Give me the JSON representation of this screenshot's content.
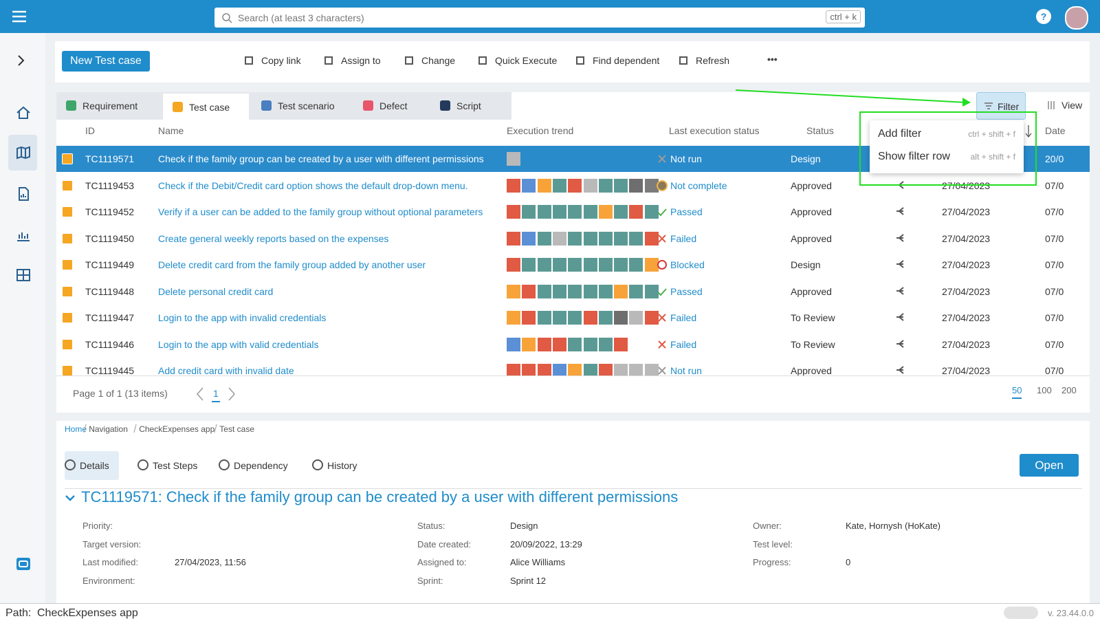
{
  "header": {
    "search_placeholder": "Search (at least 3 characters)",
    "search_shortcut": "ctrl + k",
    "help": "?"
  },
  "toolbar": {
    "primary": "New Test case",
    "actions": [
      "Copy link",
      "Assign to",
      "Change",
      "Quick Execute",
      "Find dependent",
      "Refresh"
    ],
    "more": "•••"
  },
  "tabs": {
    "items": [
      "Requirement",
      "Test case",
      "Test scenario",
      "Defect",
      "Script"
    ],
    "colors": [
      "#3fa66b",
      "#f5a623",
      "#4a7fc1",
      "#e8566c",
      "#23395d"
    ],
    "active": 1
  },
  "filter_button": "Filter",
  "view_button": "View",
  "filter_menu": [
    {
      "label": "Add filter",
      "shortcut": "ctrl + shift + f"
    },
    {
      "label": "Show filter row",
      "shortcut": "alt + shift + f"
    }
  ],
  "table": {
    "columns": [
      "ID",
      "Name",
      "Execution trend",
      "Last execution status",
      "Status",
      "Date"
    ],
    "selected_row": 0,
    "rows": [
      {
        "id": "TC1119571",
        "name": "Check if the family group can be created by a user with different permissions",
        "trend": [
          "#b9b9b9"
        ],
        "last_status": "Not run",
        "icon": "cross",
        "icon_color": "#9a9a9a",
        "status": "Design",
        "date": null,
        "date2": "20/0"
      },
      {
        "id": "TC1119453",
        "name": "Check if the Debit/Credit card option shows the default drop-down menu.",
        "trend": [
          "#e05a44",
          "#5b8fd6",
          "#f7a33a",
          "#5b9a94",
          "#e05a44",
          "#b9b9b9",
          "#5b9a94",
          "#5b9a94",
          "#6e6e6e",
          "#7c7c7c"
        ],
        "last_status": "Not complete",
        "icon": "half",
        "icon_color": "#f0b44a",
        "status": "Approved",
        "date": "27/04/2023",
        "date2": "07/0"
      },
      {
        "id": "TC1119452",
        "name": "Verify if a user can be added to the family group without optional parameters",
        "trend": [
          "#e05a44",
          "#5b9a94",
          "#5b9a94",
          "#5b9a94",
          "#5b9a94",
          "#5b9a94",
          "#f7a33a",
          "#5b9a94",
          "#e05a44",
          "#5b9a94"
        ],
        "last_status": "Passed",
        "icon": "check",
        "icon_color": "#4caf50",
        "status": "Approved",
        "date": "27/04/2023",
        "date2": "07/0"
      },
      {
        "id": "TC1119450",
        "name": "Create general weekly reports based on the expenses",
        "trend": [
          "#e05a44",
          "#5b8fd6",
          "#5b9a94",
          "#b9b9b9",
          "#5b9a94",
          "#5b9a94",
          "#5b9a94",
          "#5b9a94",
          "#5b9a94",
          "#e05a44"
        ],
        "last_status": "Failed",
        "icon": "cross",
        "icon_color": "#e05a44",
        "status": "Approved",
        "date": "27/04/2023",
        "date2": "07/0"
      },
      {
        "id": "TC1119449",
        "name": "Delete credit card from the family group added by another user",
        "trend": [
          "#e05a44",
          "#5b9a94",
          "#5b9a94",
          "#5b9a94",
          "#5b9a94",
          "#5b9a94",
          "#5b9a94",
          "#5b9a94",
          "#5b9a94",
          "#f7a33a"
        ],
        "last_status": "Blocked",
        "icon": "blocked",
        "icon_color": "#d9363e",
        "status": "Design",
        "date": "27/04/2023",
        "date2": "07/0"
      },
      {
        "id": "TC1119448",
        "name": "Delete personal credit card",
        "trend": [
          "#f7a33a",
          "#e05a44",
          "#5b9a94",
          "#5b9a94",
          "#5b9a94",
          "#5b9a94",
          "#5b9a94",
          "#f7a33a",
          "#5b9a94",
          "#5b9a94"
        ],
        "last_status": "Passed",
        "icon": "check",
        "icon_color": "#4caf50",
        "status": "Approved",
        "date": "27/04/2023",
        "date2": "07/0"
      },
      {
        "id": "TC1119447",
        "name": "Login to the app with invalid credentials",
        "trend": [
          "#f7a33a",
          "#e05a44",
          "#5b9a94",
          "#5b9a94",
          "#5b9a94",
          "#e05a44",
          "#5b9a94",
          "#6e6e6e",
          "#b9b9b9",
          "#e05a44"
        ],
        "last_status": "Failed",
        "icon": "cross",
        "icon_color": "#e05a44",
        "status": "To Review",
        "date": "27/04/2023",
        "date2": "07/0"
      },
      {
        "id": "TC1119446",
        "name": "Login to the app with valid credentials",
        "trend": [
          "#5b8fd6",
          "#f7a33a",
          "#e05a44",
          "#e05a44",
          "#5b9a94",
          "#5b9a94",
          "#5b9a94",
          "#e05a44"
        ],
        "last_status": "Failed",
        "icon": "cross",
        "icon_color": "#e05a44",
        "status": "To Review",
        "date": "27/04/2023",
        "date2": "07/0"
      },
      {
        "id": "TC1119445",
        "name": "Add credit card with invalid date",
        "trend": [
          "#e05a44",
          "#e05a44",
          "#e05a44",
          "#5b8fd6",
          "#f7a33a",
          "#5b9a94",
          "#e05a44",
          "#b9b9b9",
          "#b9b9b9",
          "#b9b9b9"
        ],
        "last_status": "Not run",
        "icon": "cross",
        "icon_color": "#9a9a9a",
        "status": "Approved",
        "date": "27/04/2023",
        "date2": "07/0"
      }
    ]
  },
  "pagination": {
    "summary": "Page 1 of 1 (13 items)",
    "page": "1",
    "sizes": [
      "50",
      "100",
      "200"
    ]
  },
  "breadcrumb": [
    "Home",
    "Navigation",
    "CheckExpenses app",
    "Test case"
  ],
  "detail": {
    "tabs": [
      "Details",
      "Test Steps",
      "Dependency",
      "History"
    ],
    "open": "Open",
    "title": "TC1119571: Check if the family group can be created by a user with different permissions",
    "fields": [
      [
        {
          "label": "Priority:",
          "value": null
        },
        {
          "label": "Target version:",
          "value": null
        },
        {
          "label": "Last modified:",
          "value": "27/04/2023, 11:56"
        },
        {
          "label": "Environment:",
          "value": null
        }
      ],
      [
        {
          "label": "Status:",
          "value": "Design"
        },
        {
          "label": "Date created:",
          "value": "20/09/2022, 13:29"
        },
        {
          "label": "Assigned to:",
          "value": "Alice Williams"
        },
        {
          "label": "Sprint:",
          "value": "Sprint 12"
        }
      ],
      [
        {
          "label": "Owner:",
          "value": "Kate, Hornysh (HoKate)"
        },
        {
          "label": "Test level:",
          "value": null
        },
        {
          "label": "Progress:",
          "value": "0"
        }
      ]
    ]
  },
  "footer": {
    "path_label": "Path:",
    "path": "CheckExpenses app",
    "version": "v. 23.44.0.0"
  }
}
